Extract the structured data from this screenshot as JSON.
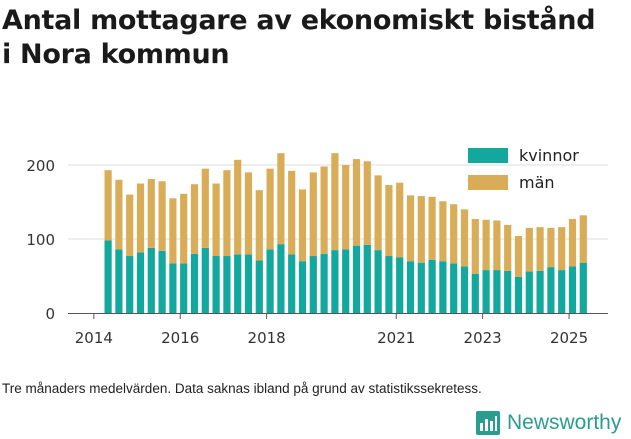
{
  "title_line1": "Antal mottagare av ekonomiskt bistånd",
  "title_line2": "i Nora kommun",
  "caption": "Tre månaders medelvärden. Data saknas ibland på grund av statistikssekretess.",
  "brand": {
    "name": "Newsworthy",
    "icon": "newsworthy-logo-icon",
    "color": "#2a9d8f"
  },
  "colors": {
    "kvinnor": "#13a89e",
    "man": "#d9ad57",
    "grid": "#dddddd"
  },
  "chart_data": {
    "type": "bar",
    "stacked": true,
    "title": "Antal mottagare av ekonomiskt bistånd i Nora kommun",
    "ylim": [
      0,
      240
    ],
    "yticks": [
      0,
      100,
      200
    ],
    "xticks": [
      "2014",
      "2016",
      "2018",
      "2021",
      "2023",
      "2025"
    ],
    "legend_position": "top-right",
    "grid": true,
    "series": [
      {
        "name": "kvinnor",
        "values": [
          98,
          86,
          77,
          82,
          88,
          84,
          67,
          67,
          80,
          88,
          77,
          77,
          79,
          79,
          71,
          86,
          93,
          79,
          70,
          77,
          80,
          85,
          86,
          91,
          92,
          85,
          77,
          75,
          70,
          68,
          72,
          70,
          67,
          63,
          53,
          58,
          58,
          57,
          49,
          56,
          57,
          62,
          58,
          63,
          68
        ]
      },
      {
        "name": "män",
        "values": [
          95,
          94,
          83,
          93,
          93,
          94,
          88,
          94,
          94,
          107,
          98,
          116,
          128,
          111,
          95,
          109,
          123,
          113,
          97,
          113,
          118,
          131,
          114,
          117,
          113,
          101,
          96,
          101,
          89,
          90,
          85,
          81,
          80,
          77,
          74,
          68,
          67,
          62,
          55,
          59,
          59,
          53,
          58,
          64,
          64
        ]
      }
    ]
  }
}
